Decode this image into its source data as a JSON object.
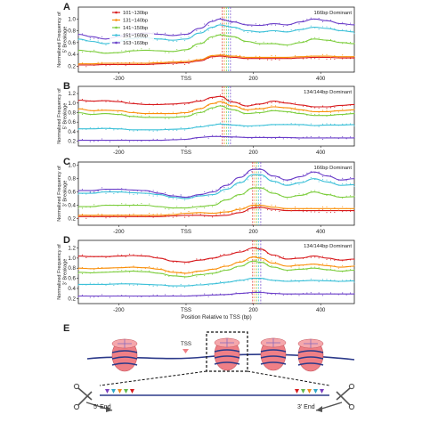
{
  "chart_data": [
    {
      "panel": "A",
      "type": "line",
      "annotation": "166bp Dominant",
      "xlabel": "",
      "ylabel": "Normalized Frequency of 5' Breakage",
      "xlim": [
        -320,
        500
      ],
      "ylim": [
        0.1,
        1.2
      ],
      "x_ticks": [
        "-200",
        "TSS",
        "200",
        "400"
      ],
      "y_ticks": [
        "0.2",
        "0.4",
        "0.6",
        "0.8",
        "1.0"
      ],
      "legend_position": "top-left",
      "x": [
        -320,
        -280,
        -240,
        -200,
        -160,
        -120,
        -80,
        -40,
        0,
        40,
        80,
        100,
        140,
        180,
        220,
        260,
        300,
        340,
        380,
        420,
        460,
        500
      ],
      "series": [
        {
          "name": "101~130bp",
          "color": "#d7191c",
          "values": [
            0.22,
            0.22,
            0.23,
            0.23,
            0.23,
            0.23,
            0.24,
            0.25,
            0.26,
            0.29,
            0.36,
            0.37,
            0.35,
            0.33,
            0.33,
            0.33,
            0.33,
            0.34,
            0.35,
            0.35,
            0.34,
            0.34
          ]
        },
        {
          "name": "131~140bp",
          "color": "#f98e08",
          "values": [
            0.24,
            0.24,
            0.25,
            0.25,
            0.25,
            0.25,
            0.26,
            0.27,
            0.28,
            0.31,
            0.38,
            0.39,
            0.37,
            0.35,
            0.35,
            0.35,
            0.35,
            0.36,
            0.37,
            0.37,
            0.36,
            0.36
          ]
        },
        {
          "name": "141~150bp",
          "color": "#7ccd3c",
          "values": [
            0.47,
            0.45,
            0.42,
            0.43,
            0.46,
            0.47,
            0.46,
            0.45,
            0.48,
            0.58,
            0.7,
            0.73,
            0.7,
            0.62,
            0.58,
            0.58,
            0.56,
            0.6,
            0.66,
            0.64,
            0.6,
            0.58
          ]
        },
        {
          "name": "151~160bp",
          "color": "#3cc0d8",
          "values": [
            0.66,
            0.62,
            0.58,
            0.62,
            0.67,
            0.68,
            0.66,
            0.64,
            0.66,
            0.76,
            0.86,
            0.9,
            0.86,
            0.8,
            0.78,
            0.8,
            0.78,
            0.82,
            0.86,
            0.84,
            0.8,
            0.78
          ]
        },
        {
          "name": "163~169bp",
          "color": "#6a3dc8",
          "values": [
            0.74,
            0.7,
            0.66,
            0.7,
            0.75,
            0.76,
            0.74,
            0.72,
            0.74,
            0.84,
            0.96,
            1.0,
            0.95,
            0.9,
            0.89,
            0.92,
            0.9,
            0.95,
            1.0,
            0.97,
            0.92,
            0.9
          ]
        }
      ],
      "vlines_x": [
        108,
        114,
        120,
        126,
        132
      ]
    },
    {
      "panel": "B",
      "type": "line",
      "annotation": "134/144bp Dominant",
      "xlabel": "",
      "ylabel": "Normalized Frequency of 5' Breakage",
      "xlim": [
        -320,
        500
      ],
      "ylim": [
        0.1,
        1.35
      ],
      "x_ticks": [
        "-200",
        "TSS",
        "200",
        "400"
      ],
      "y_ticks": [
        "0.2",
        "0.4",
        "0.6",
        "0.8",
        "1.0",
        "1.2"
      ],
      "x": [
        -320,
        -280,
        -240,
        -200,
        -160,
        -120,
        -80,
        -40,
        0,
        40,
        80,
        100,
        140,
        180,
        220,
        260,
        300,
        340,
        380,
        420,
        460,
        500
      ],
      "series": [
        {
          "name": "101~130bp",
          "color": "#d7191c",
          "values": [
            1.06,
            1.04,
            1.05,
            1.03,
            0.99,
            0.97,
            0.97,
            0.98,
            1.0,
            1.04,
            1.12,
            1.14,
            1.02,
            0.94,
            0.98,
            1.04,
            1.0,
            0.96,
            0.92,
            0.92,
            0.95,
            0.97
          ]
        },
        {
          "name": "131~140bp",
          "color": "#f98e08",
          "values": [
            0.88,
            0.84,
            0.85,
            0.84,
            0.8,
            0.78,
            0.78,
            0.78,
            0.8,
            0.88,
            0.99,
            1.03,
            0.94,
            0.86,
            0.88,
            0.92,
            0.9,
            0.86,
            0.82,
            0.82,
            0.84,
            0.86
          ]
        },
        {
          "name": "141~150bp",
          "color": "#7ccd3c",
          "values": [
            0.8,
            0.76,
            0.78,
            0.76,
            0.72,
            0.7,
            0.7,
            0.7,
            0.72,
            0.8,
            0.9,
            0.94,
            0.86,
            0.78,
            0.8,
            0.84,
            0.82,
            0.78,
            0.74,
            0.74,
            0.76,
            0.78
          ]
        },
        {
          "name": "151~160bp",
          "color": "#3cc0d8",
          "values": [
            0.46,
            0.46,
            0.47,
            0.46,
            0.44,
            0.44,
            0.44,
            0.45,
            0.46,
            0.5,
            0.54,
            0.56,
            0.54,
            0.52,
            0.53,
            0.55,
            0.55,
            0.55,
            0.53,
            0.54,
            0.54,
            0.55
          ]
        },
        {
          "name": "163~169bp",
          "color": "#6a3dc8",
          "values": [
            0.22,
            0.22,
            0.22,
            0.22,
            0.22,
            0.22,
            0.22,
            0.23,
            0.24,
            0.28,
            0.3,
            0.3,
            0.29,
            0.28,
            0.28,
            0.28,
            0.28,
            0.27,
            0.27,
            0.27,
            0.27,
            0.27
          ]
        }
      ],
      "vlines_x": [
        108,
        114,
        120,
        126,
        132
      ]
    },
    {
      "panel": "C",
      "type": "line",
      "annotation": "166bp Dominant",
      "xlabel": "",
      "ylabel": "Normalized Frequency of 3' Breakage",
      "xlim": [
        -320,
        500
      ],
      "ylim": [
        0.1,
        1.05
      ],
      "x_ticks": [
        "-200",
        "TSS",
        "200",
        "400"
      ],
      "y_ticks": [
        "0.2",
        "0.4",
        "0.6",
        "0.8",
        "1.0"
      ],
      "x": [
        -320,
        -280,
        -240,
        -200,
        -160,
        -120,
        -80,
        -40,
        0,
        40,
        80,
        120,
        160,
        200,
        220,
        260,
        300,
        340,
        380,
        420,
        460,
        500
      ],
      "series": [
        {
          "name": "101~130bp",
          "color": "#d7191c",
          "values": [
            0.23,
            0.23,
            0.23,
            0.23,
            0.23,
            0.23,
            0.23,
            0.24,
            0.25,
            0.25,
            0.24,
            0.25,
            0.29,
            0.36,
            0.37,
            0.34,
            0.32,
            0.32,
            0.32,
            0.32,
            0.32,
            0.32
          ]
        },
        {
          "name": "131~140bp",
          "color": "#f98e08",
          "values": [
            0.25,
            0.25,
            0.25,
            0.25,
            0.25,
            0.25,
            0.25,
            0.26,
            0.28,
            0.29,
            0.28,
            0.3,
            0.34,
            0.4,
            0.4,
            0.37,
            0.35,
            0.35,
            0.35,
            0.35,
            0.35,
            0.35
          ]
        },
        {
          "name": "141~150bp",
          "color": "#7ccd3c",
          "values": [
            0.38,
            0.38,
            0.4,
            0.4,
            0.4,
            0.4,
            0.38,
            0.36,
            0.36,
            0.38,
            0.4,
            0.48,
            0.56,
            0.66,
            0.66,
            0.58,
            0.52,
            0.55,
            0.6,
            0.56,
            0.52,
            0.53
          ]
        },
        {
          "name": "151~160bp",
          "color": "#3cc0d8",
          "values": [
            0.58,
            0.58,
            0.6,
            0.6,
            0.59,
            0.58,
            0.56,
            0.52,
            0.5,
            0.54,
            0.56,
            0.64,
            0.74,
            0.86,
            0.86,
            0.76,
            0.7,
            0.74,
            0.8,
            0.75,
            0.7,
            0.71
          ]
        },
        {
          "name": "163~169bp",
          "color": "#6a3dc8",
          "values": [
            0.62,
            0.62,
            0.64,
            0.64,
            0.63,
            0.62,
            0.58,
            0.54,
            0.52,
            0.56,
            0.6,
            0.7,
            0.82,
            0.94,
            0.94,
            0.84,
            0.78,
            0.83,
            0.9,
            0.84,
            0.78,
            0.8
          ]
        }
      ],
      "vlines_x": [
        198,
        204,
        210,
        216,
        222
      ]
    },
    {
      "panel": "D",
      "type": "line",
      "annotation": "134/144bp Dominant",
      "xlabel": "Position Relative to TSS (bp)",
      "ylabel": "Normalized Frequency of 3' Breakage",
      "xlim": [
        -320,
        500
      ],
      "ylim": [
        0.1,
        1.35
      ],
      "x_ticks": [
        "-200",
        "TSS",
        "200",
        "400"
      ],
      "y_ticks": [
        "0.2",
        "0.4",
        "0.6",
        "0.8",
        "1.0",
        "1.2"
      ],
      "x": [
        -320,
        -280,
        -240,
        -200,
        -160,
        -120,
        -80,
        -40,
        0,
        40,
        80,
        120,
        160,
        200,
        220,
        260,
        300,
        340,
        380,
        420,
        460,
        500
      ],
      "series": [
        {
          "name": "101~130bp",
          "color": "#d7191c",
          "values": [
            1.04,
            1.03,
            1.03,
            1.04,
            1.05,
            1.04,
            1.0,
            0.94,
            0.92,
            0.96,
            1.0,
            1.06,
            1.12,
            1.2,
            1.18,
            1.06,
            0.98,
            1.0,
            1.04,
            1.0,
            0.96,
            0.98
          ]
        },
        {
          "name": "131~140bp",
          "color": "#f98e08",
          "values": [
            0.8,
            0.79,
            0.8,
            0.81,
            0.82,
            0.81,
            0.78,
            0.72,
            0.7,
            0.74,
            0.78,
            0.84,
            0.92,
            1.02,
            1.0,
            0.9,
            0.84,
            0.86,
            0.88,
            0.85,
            0.82,
            0.84
          ]
        },
        {
          "name": "141~150bp",
          "color": "#7ccd3c",
          "values": [
            0.72,
            0.71,
            0.72,
            0.73,
            0.74,
            0.73,
            0.7,
            0.65,
            0.63,
            0.67,
            0.7,
            0.76,
            0.84,
            0.94,
            0.92,
            0.82,
            0.76,
            0.78,
            0.8,
            0.77,
            0.74,
            0.76
          ]
        },
        {
          "name": "151~160bp",
          "color": "#3cc0d8",
          "values": [
            0.48,
            0.48,
            0.48,
            0.49,
            0.49,
            0.48,
            0.47,
            0.45,
            0.45,
            0.47,
            0.49,
            0.52,
            0.56,
            0.6,
            0.6,
            0.56,
            0.54,
            0.55,
            0.56,
            0.55,
            0.54,
            0.55
          ]
        },
        {
          "name": "163~169bp",
          "color": "#6a3dc8",
          "values": [
            0.25,
            0.25,
            0.25,
            0.25,
            0.25,
            0.25,
            0.25,
            0.25,
            0.25,
            0.26,
            0.27,
            0.28,
            0.3,
            0.32,
            0.32,
            0.3,
            0.29,
            0.29,
            0.29,
            0.29,
            0.29,
            0.29
          ]
        }
      ],
      "vlines_x": [
        198,
        204,
        210,
        216,
        222
      ]
    }
  ],
  "panel_labels": [
    "A",
    "B",
    "C",
    "D",
    "E"
  ],
  "diagram_E": {
    "tss_label": "TSS",
    "left_end_label": "5' End",
    "right_end_label": "3' End",
    "nucleosome_color": "#ef7f86",
    "dna_color": "#2c3a8a",
    "tss_marker_color": "#ef7f86",
    "triangle_colors": [
      "#7b3fbf",
      "#2fa7c8",
      "#f08a1c",
      "#62b84a",
      "#d7191c"
    ]
  }
}
